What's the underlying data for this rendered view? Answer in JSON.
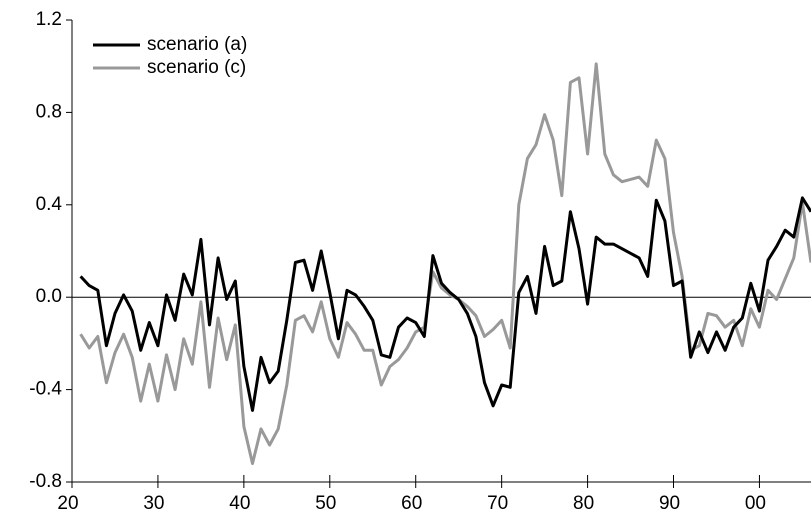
{
  "chart_data": {
    "type": "line",
    "x": [
      1921,
      1922,
      1923,
      1924,
      1925,
      1926,
      1927,
      1928,
      1929,
      1930,
      1931,
      1932,
      1933,
      1934,
      1935,
      1936,
      1937,
      1938,
      1939,
      1940,
      1941,
      1942,
      1943,
      1944,
      1945,
      1946,
      1947,
      1948,
      1949,
      1950,
      1951,
      1952,
      1953,
      1954,
      1955,
      1956,
      1957,
      1958,
      1959,
      1960,
      1961,
      1962,
      1963,
      1964,
      1965,
      1966,
      1967,
      1968,
      1969,
      1970,
      1971,
      1972,
      1973,
      1974,
      1975,
      1976,
      1977,
      1978,
      1979,
      1980,
      1981,
      1982,
      1983,
      1984,
      1985,
      1986,
      1987,
      1988,
      1989,
      1990,
      1991,
      1992,
      1993,
      1994,
      1995,
      1996,
      1997,
      1998,
      1999,
      2000,
      2001,
      2002,
      2003,
      2004,
      2005,
      2006
    ],
    "series": [
      {
        "name": "scenario (a)",
        "color": "#000000",
        "values": [
          0.09,
          0.05,
          0.03,
          -0.21,
          -0.07,
          0.01,
          -0.06,
          -0.23,
          -0.11,
          -0.21,
          0.01,
          -0.1,
          0.1,
          0.01,
          0.25,
          -0.12,
          0.17,
          -0.01,
          0.07,
          -0.3,
          -0.49,
          -0.26,
          -0.37,
          -0.32,
          -0.1,
          0.15,
          0.16,
          0.03,
          0.2,
          0.02,
          -0.18,
          0.03,
          0.01,
          -0.04,
          -0.1,
          -0.25,
          -0.26,
          -0.13,
          -0.09,
          -0.11,
          -0.17,
          0.18,
          0.06,
          0.02,
          -0.01,
          -0.07,
          -0.17,
          -0.37,
          -0.47,
          -0.38,
          -0.39,
          0.02,
          0.09,
          -0.07,
          0.22,
          0.05,
          0.07,
          0.37,
          0.21,
          -0.03,
          0.26,
          0.23,
          0.23,
          0.21,
          0.19,
          0.17,
          0.09,
          0.42,
          0.33,
          0.05,
          0.07,
          -0.26,
          -0.15,
          -0.24,
          -0.15,
          -0.23,
          -0.13,
          -0.09,
          0.06,
          -0.06,
          0.16,
          0.22,
          0.29,
          0.26,
          0.43,
          0.37
        ]
      },
      {
        "name": "scenario (c)",
        "color": "#999999",
        "values": [
          -0.16,
          -0.22,
          -0.17,
          -0.37,
          -0.24,
          -0.16,
          -0.26,
          -0.45,
          -0.29,
          -0.45,
          -0.25,
          -0.4,
          -0.18,
          -0.29,
          -0.02,
          -0.39,
          -0.09,
          -0.27,
          -0.12,
          -0.56,
          -0.72,
          -0.57,
          -0.64,
          -0.57,
          -0.38,
          -0.1,
          -0.08,
          -0.15,
          -0.02,
          -0.18,
          -0.26,
          -0.11,
          -0.16,
          -0.23,
          -0.23,
          -0.38,
          -0.3,
          -0.27,
          -0.22,
          -0.15,
          -0.13,
          0.11,
          0.04,
          0.01,
          -0.01,
          -0.04,
          -0.08,
          -0.17,
          -0.14,
          -0.1,
          -0.22,
          0.4,
          0.6,
          0.66,
          0.79,
          0.68,
          0.44,
          0.93,
          0.95,
          0.62,
          1.01,
          0.62,
          0.53,
          0.5,
          0.51,
          0.52,
          0.48,
          0.68,
          0.6,
          0.28,
          0.09,
          -0.23,
          -0.21,
          -0.07,
          -0.08,
          -0.13,
          -0.1,
          -0.21,
          -0.05,
          -0.13,
          0.03,
          -0.01,
          0.08,
          0.17,
          0.41,
          0.15
        ]
      }
    ],
    "xlim": [
      1920,
      2006
    ],
    "xticks": [
      {
        "value": 1920,
        "label": "20"
      },
      {
        "value": 1930,
        "label": "30"
      },
      {
        "value": 1940,
        "label": "40"
      },
      {
        "value": 1950,
        "label": "50"
      },
      {
        "value": 1960,
        "label": "60"
      },
      {
        "value": 1970,
        "label": "70"
      },
      {
        "value": 1980,
        "label": "80"
      },
      {
        "value": 1990,
        "label": "90"
      },
      {
        "value": 2000,
        "label": "00"
      }
    ],
    "ylim": [
      -0.8,
      1.2
    ],
    "yticks": [
      -0.8,
      -0.4,
      {
        "value": 0,
        "label": "0.0"
      },
      0.4,
      0.8,
      1.2
    ],
    "legend": "upper left",
    "zero_line": true
  }
}
